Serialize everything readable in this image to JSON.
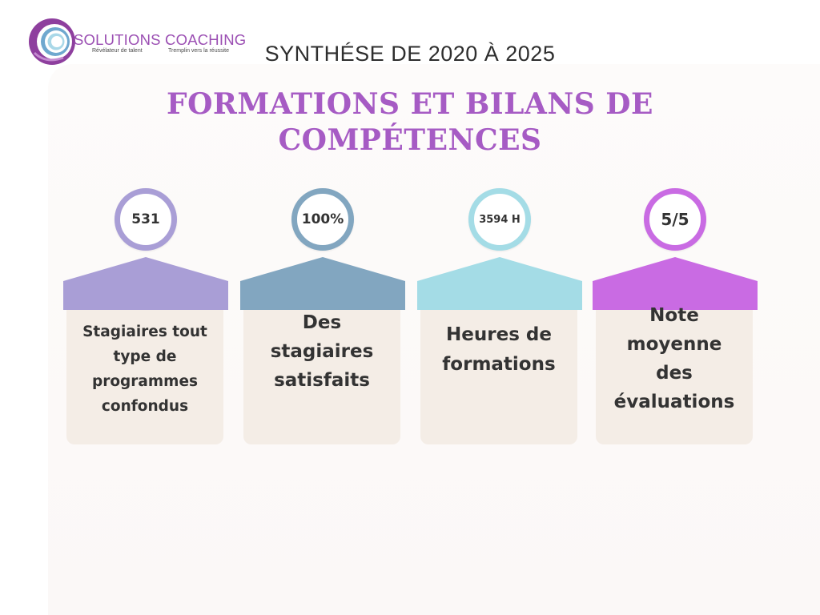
{
  "logo": {
    "name": "SOLUTIONS COACHING",
    "tagline_left": "Révélateur de talent",
    "tagline_right": "Tremplin vers la réussite"
  },
  "subtitle": "SYNTHÉSE DE 2020 À 2025",
  "title_line1": "FORMATIONS ET BILANS DE",
  "title_line2": "COMPÉTENCES",
  "colors": {
    "title": "#a65bc4",
    "card1": "#a99ed6",
    "card2": "#82a6c0",
    "card3": "#a4dce6",
    "card4": "#c96be3",
    "card_body": "#f4ede6"
  },
  "cards": [
    {
      "value": "531",
      "label_lines": [
        "Stagiaires tout",
        "type de",
        "programmes",
        "confondus"
      ]
    },
    {
      "value": "100%",
      "label_lines": [
        "Des",
        "stagiaires",
        "satisfaits"
      ]
    },
    {
      "value": "3594 H",
      "label_lines": [
        "Heures de",
        "formations"
      ]
    },
    {
      "value": "5/5",
      "label_lines": [
        "Note",
        "moyenne",
        "des",
        "évaluations"
      ]
    }
  ]
}
